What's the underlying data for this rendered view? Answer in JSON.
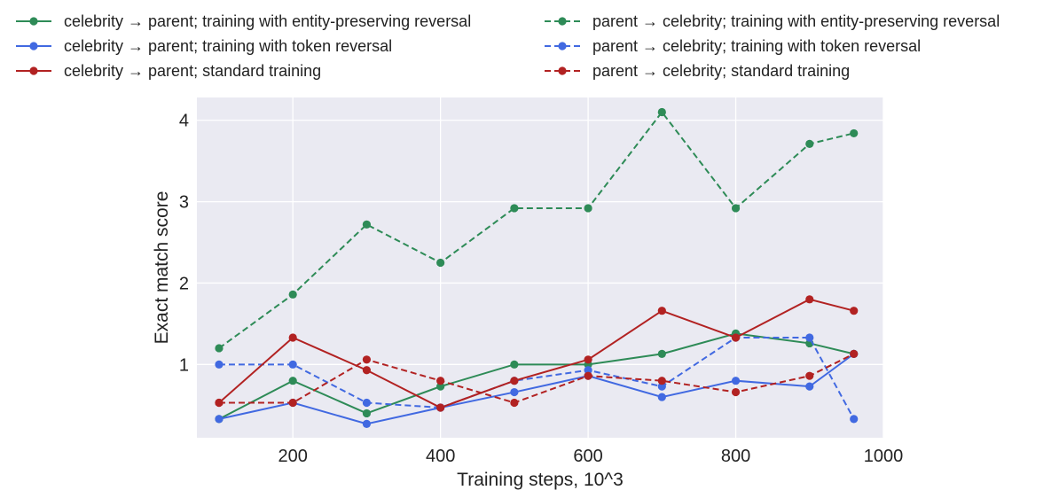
{
  "chart_data": {
    "type": "line",
    "title": "",
    "xlabel": "Training steps, 10^3",
    "ylabel": "Exact match score",
    "xlim": [
      70,
      1000
    ],
    "ylim": [
      0.1,
      4.28
    ],
    "xticks": [
      200,
      400,
      600,
      800,
      1000
    ],
    "yticks": [
      1,
      2,
      3,
      4
    ],
    "xtick_labels": [
      "200",
      "400",
      "600",
      "800",
      "1000"
    ],
    "ytick_labels": [
      "1",
      "2",
      "3",
      "4"
    ],
    "grid": true,
    "legend_position": "top",
    "x": [
      100,
      200,
      300,
      400,
      500,
      600,
      700,
      800,
      900,
      960
    ],
    "series": [
      {
        "name": "celebrity → parent; training with entity-preserving reversal",
        "color": "#2e8b57",
        "dashed": false,
        "values": [
          0.33,
          0.8,
          0.4,
          0.73,
          1.0,
          1.0,
          1.13,
          1.38,
          1.26,
          1.13
        ]
      },
      {
        "name": "parent → celebrity; training with entity-preserving reversal",
        "color": "#2e8b57",
        "dashed": true,
        "values": [
          1.2,
          1.86,
          2.72,
          2.25,
          2.92,
          2.92,
          4.1,
          2.92,
          3.71,
          3.84
        ]
      },
      {
        "name": "celebrity → parent; training with token reversal",
        "color": "#4169e1",
        "dashed": false,
        "values": [
          0.33,
          0.53,
          0.27,
          0.47,
          0.66,
          0.86,
          0.6,
          0.8,
          0.73,
          1.13
        ]
      },
      {
        "name": "parent → celebrity; training with token reversal",
        "color": "#4169e1",
        "dashed": true,
        "values": [
          1.0,
          1.0,
          0.53,
          0.47,
          0.8,
          0.93,
          0.73,
          1.33,
          1.33,
          0.33
        ]
      },
      {
        "name": "celebrity → parent; standard training",
        "color": "#b22222",
        "dashed": false,
        "values": [
          0.53,
          1.33,
          0.93,
          0.47,
          0.8,
          1.06,
          1.66,
          1.33,
          1.8,
          1.66
        ]
      },
      {
        "name": "parent → celebrity; standard training",
        "color": "#b22222",
        "dashed": true,
        "values": [
          0.53,
          0.53,
          1.06,
          0.8,
          0.53,
          0.86,
          0.8,
          0.66,
          0.86,
          1.13
        ]
      }
    ]
  }
}
